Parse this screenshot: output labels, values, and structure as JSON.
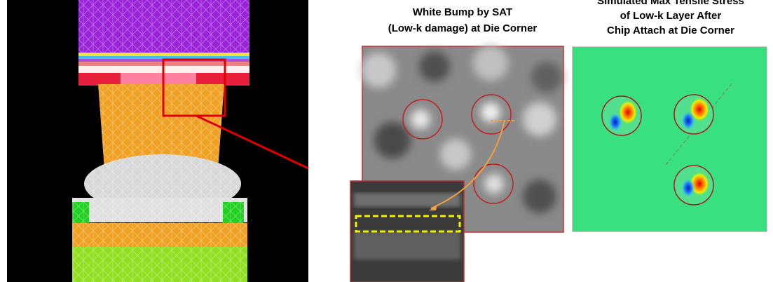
{
  "panels": [
    {
      "title_lines": [
        "White Bump by SAT",
        "(Low-k damage) at Die Corner"
      ]
    },
    {
      "title_lines": [
        "Simulated Max Tensile Stress",
        "of Low-k Layer After",
        "Chip Attach at Die Corner"
      ]
    }
  ]
}
